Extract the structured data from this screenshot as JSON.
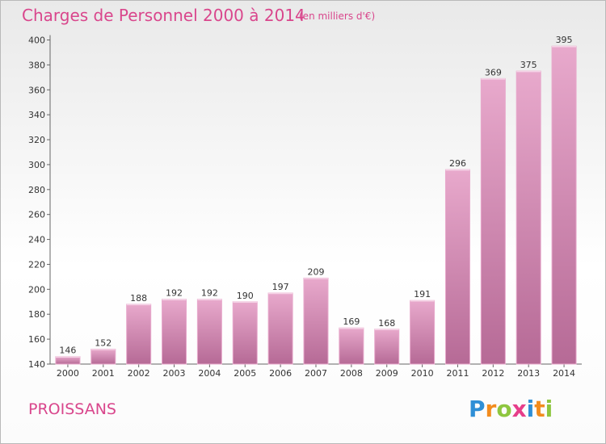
{
  "page": {
    "title": "Charges de Personnel 2000 à 2014",
    "unit": "(en milliers d'€)",
    "commune": "PROISSANS",
    "brand": {
      "letters": [
        "P",
        "r",
        "o",
        "x",
        "i",
        "t",
        "i"
      ],
      "colors": [
        "#2f8fd6",
        "#f28c1e",
        "#8ec63f",
        "#e63e8a",
        "#2f8fd6",
        "#f28c1e",
        "#8ec63f"
      ]
    }
  },
  "chart_data": {
    "type": "bar",
    "title": "Charges de Personnel 2000 à 2014",
    "subtitle": "(en milliers d'€)",
    "xlabel": "",
    "ylabel": "",
    "categories": [
      "2000",
      "2001",
      "2002",
      "2003",
      "2004",
      "2005",
      "2006",
      "2007",
      "2008",
      "2009",
      "2010",
      "2011",
      "2012",
      "2013",
      "2014"
    ],
    "values": [
      146,
      152,
      188,
      192,
      192,
      190,
      197,
      209,
      169,
      168,
      191,
      296,
      369,
      375,
      395
    ],
    "ylim": [
      140,
      400
    ],
    "yticks": [
      140,
      160,
      180,
      200,
      220,
      240,
      260,
      280,
      300,
      320,
      340,
      360,
      380,
      400
    ],
    "grid": false,
    "colors": {
      "bar": "#d889b6",
      "bar_light": "#e8a9cc",
      "bar_dark": "#b66a96"
    }
  }
}
